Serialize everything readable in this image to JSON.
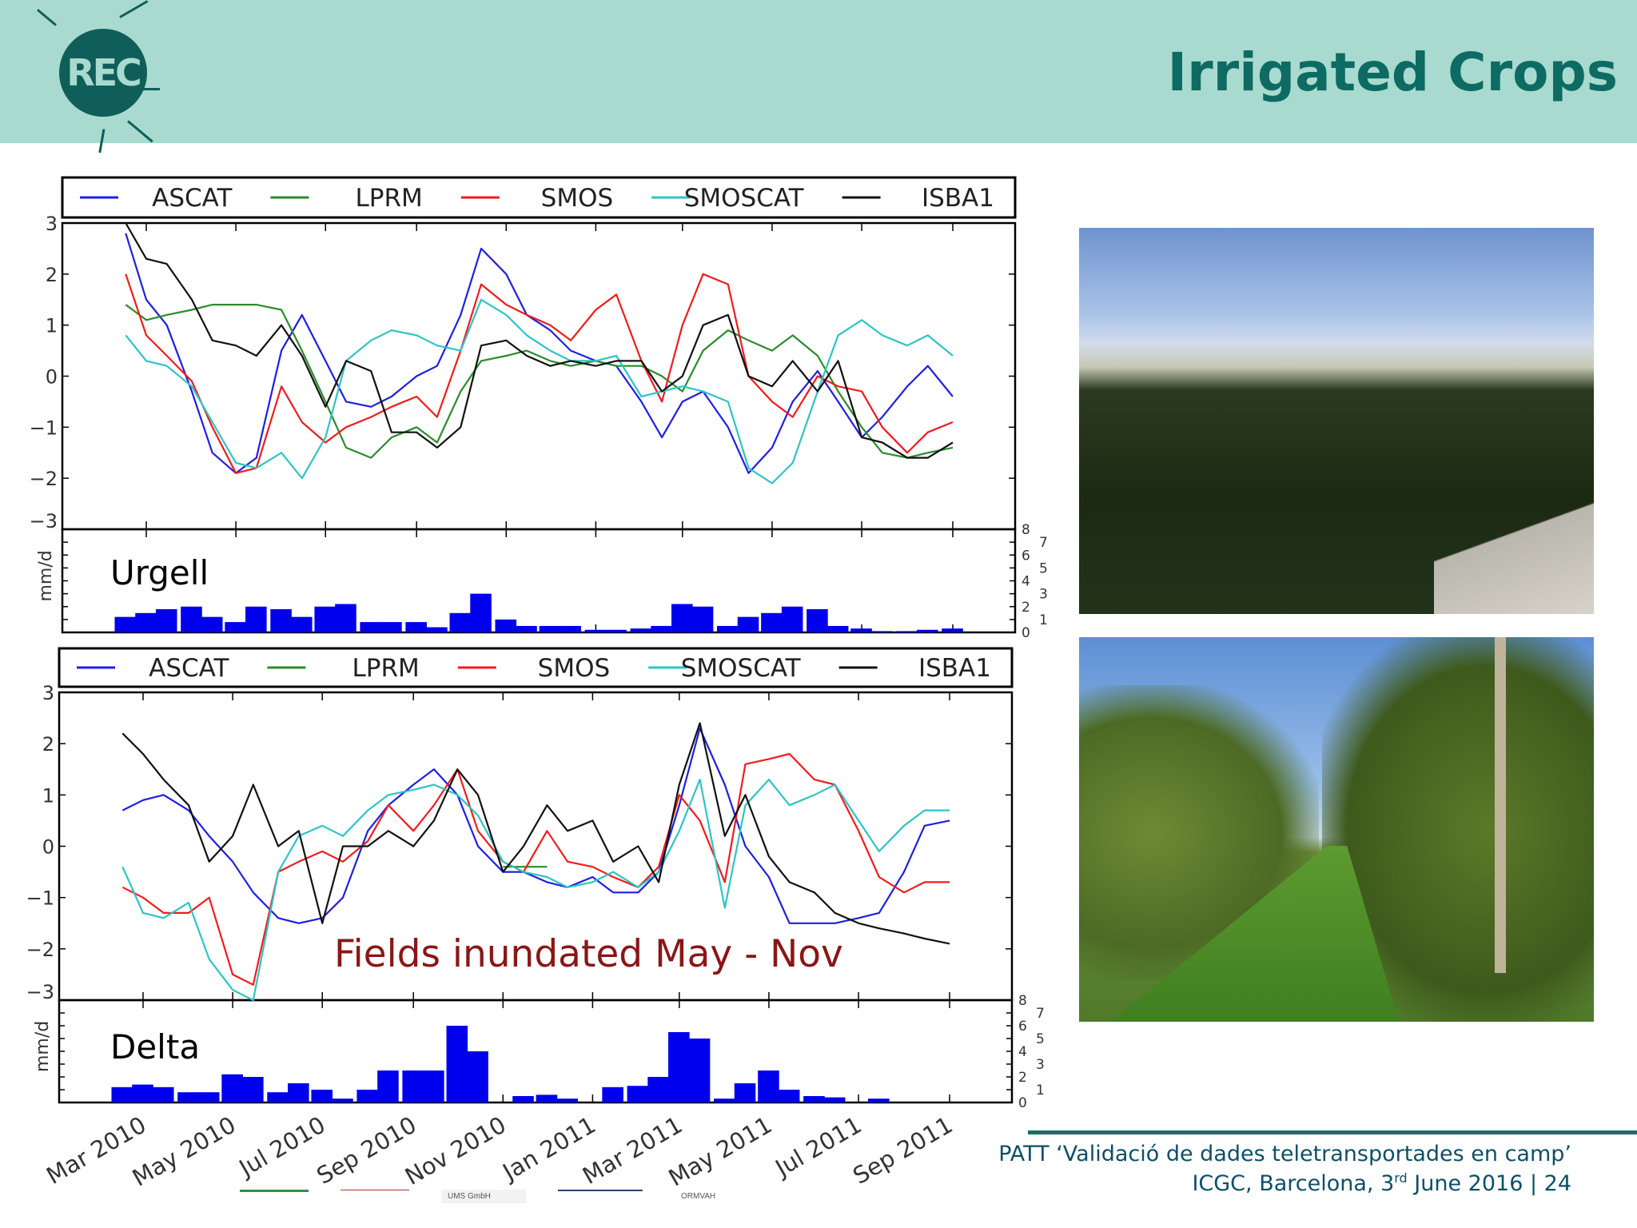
{
  "header": {
    "title": "Irrigated Crops",
    "logo_text": "REC",
    "brand_color": "#0d6b63",
    "band_color": "#a9dacf"
  },
  "chart_data": [
    {
      "type": "line",
      "panel_label": "Urgell",
      "legend": [
        "ASCAT",
        "LPRM",
        "SMOS",
        "SMOSCAT",
        "ISBA1"
      ],
      "ylim": [
        -3,
        3
      ],
      "yticks": [
        "3",
        "2",
        "1",
        "0",
        "−1",
        "−2",
        "−3"
      ],
      "xtick_labels": [
        "Mar 2010",
        "May 2010",
        "Jul 2010",
        "Sep 2010",
        "Nov 2010",
        "Jan 2011",
        "Mar 2011",
        "May 2011",
        "Jul 2011",
        "Sep 2011"
      ],
      "x": [
        "2010-02-15",
        "2010-03-01",
        "2010-03-15",
        "2010-04-01",
        "2010-04-15",
        "2010-05-01",
        "2010-05-15",
        "2010-06-01",
        "2010-06-15",
        "2010-07-01",
        "2010-07-15",
        "2010-08-01",
        "2010-08-15",
        "2010-09-01",
        "2010-09-15",
        "2010-10-01",
        "2010-10-15",
        "2010-11-01",
        "2010-11-15",
        "2010-12-01",
        "2010-12-15",
        "2011-01-01",
        "2011-01-15",
        "2011-02-01",
        "2011-02-15",
        "2011-03-01",
        "2011-03-15",
        "2011-04-01",
        "2011-04-15",
        "2011-05-01",
        "2011-05-15",
        "2011-06-01",
        "2011-06-15",
        "2011-07-01",
        "2011-07-15",
        "2011-08-01",
        "2011-08-15",
        "2011-09-01"
      ],
      "series": [
        {
          "name": "ASCAT",
          "color": "#1f1fe0",
          "values": [
            2.8,
            1.5,
            1.0,
            -0.3,
            -1.5,
            -1.9,
            -1.6,
            0.5,
            1.2,
            0.3,
            -0.5,
            -0.6,
            -0.4,
            0.0,
            0.2,
            1.2,
            2.5,
            2.0,
            1.2,
            0.9,
            0.5,
            0.3,
            0.2,
            -0.5,
            -1.2,
            -0.5,
            -0.3,
            -1.0,
            -1.9,
            -1.4,
            -0.5,
            0.1,
            -0.5,
            -1.2,
            -0.8,
            -0.2,
            0.2,
            -0.4
          ]
        },
        {
          "name": "LPRM",
          "color": "#2a8c2a",
          "values": [
            1.4,
            1.1,
            1.2,
            1.3,
            1.4,
            1.4,
            1.4,
            1.3,
            0.5,
            -0.5,
            -1.4,
            -1.6,
            -1.2,
            -1.0,
            -1.3,
            -0.3,
            0.3,
            0.4,
            0.5,
            0.3,
            0.2,
            0.3,
            0.2,
            0.2,
            0.0,
            -0.3,
            0.5,
            0.9,
            0.7,
            0.5,
            0.8,
            0.4,
            -0.3,
            -1.0,
            -1.5,
            -1.6,
            -1.5,
            -1.4
          ]
        },
        {
          "name": "SMOS",
          "color": "#f01c1c",
          "values": [
            2.0,
            0.8,
            0.4,
            -0.1,
            -1.0,
            -1.9,
            -1.8,
            -0.2,
            -0.9,
            -1.3,
            -1.0,
            -0.8,
            -0.6,
            -0.4,
            -0.8,
            0.5,
            1.8,
            1.4,
            1.2,
            1.0,
            0.7,
            1.3,
            1.6,
            0.3,
            -0.5,
            1.0,
            2.0,
            1.8,
            0.0,
            -0.5,
            -0.8,
            0.0,
            -0.2,
            -0.3,
            -1.0,
            -1.5,
            -1.1,
            -0.9
          ]
        },
        {
          "name": "SMOSCAT",
          "color": "#2ec4c4",
          "values": [
            0.8,
            0.3,
            0.2,
            -0.2,
            -0.9,
            -1.7,
            -1.8,
            -1.5,
            -2.0,
            -1.2,
            0.3,
            0.7,
            0.9,
            0.8,
            0.6,
            0.5,
            1.5,
            1.2,
            0.8,
            0.5,
            0.3,
            0.3,
            0.4,
            -0.4,
            -0.3,
            -0.2,
            -0.3,
            -0.5,
            -1.8,
            -2.1,
            -1.7,
            -0.3,
            0.8,
            1.1,
            0.8,
            0.6,
            0.8,
            0.4
          ]
        },
        {
          "name": "ISBA1",
          "color": "#111111",
          "values": [
            3.0,
            2.3,
            2.2,
            1.5,
            0.7,
            0.6,
            0.4,
            1.0,
            0.4,
            -0.6,
            0.3,
            0.1,
            -1.1,
            -1.1,
            -1.4,
            -1.0,
            0.6,
            0.7,
            0.4,
            0.2,
            0.3,
            0.2,
            0.3,
            0.3,
            -0.3,
            0.0,
            1.0,
            1.2,
            0.0,
            -0.2,
            0.3,
            -0.3,
            0.3,
            -1.2,
            -1.3,
            -1.6,
            -1.6,
            -1.3
          ]
        }
      ],
      "precip": {
        "ylabel": "mm/d",
        "ylim": [
          0,
          8
        ],
        "yticks": [
          "0",
          "1",
          "2",
          "3",
          "4",
          "5",
          "6",
          "7",
          "8"
        ],
        "color": "#0000ee",
        "values": [
          1.2,
          1.5,
          1.8,
          2.0,
          1.2,
          0.8,
          2.0,
          1.8,
          1.2,
          2.0,
          2.2,
          0.8,
          0.8,
          0.8,
          0.4,
          1.5,
          3.0,
          1.0,
          0.5,
          0.5,
          0.5,
          0.2,
          0.2,
          0.3,
          0.5,
          2.2,
          2.0,
          0.5,
          1.2,
          1.5,
          2.0,
          1.8,
          0.5,
          0.3,
          0.1,
          0.1,
          0.2,
          0.3
        ]
      }
    },
    {
      "type": "line",
      "panel_label": "Delta",
      "annotation": "Fields inundated May - Nov",
      "legend": [
        "ASCAT",
        "LPRM",
        "SMOS",
        "SMOSCAT",
        "ISBA1"
      ],
      "ylim": [
        -3,
        3
      ],
      "yticks": [
        "3",
        "2",
        "1",
        "0",
        "−1",
        "−2",
        "−3"
      ],
      "xtick_labels": [
        "Mar 2010",
        "May 2010",
        "Jul 2010",
        "Sep 2010",
        "Nov 2010",
        "Jan 2011",
        "Mar 2011",
        "May 2011",
        "Jul 2011",
        "Sep 2011"
      ],
      "x": [
        "2010-02-15",
        "2010-03-01",
        "2010-03-15",
        "2010-04-01",
        "2010-04-15",
        "2010-05-01",
        "2010-05-15",
        "2010-06-01",
        "2010-06-15",
        "2010-07-01",
        "2010-07-15",
        "2010-08-01",
        "2010-08-15",
        "2010-09-01",
        "2010-09-15",
        "2010-10-01",
        "2010-10-15",
        "2010-11-01",
        "2010-11-15",
        "2010-12-01",
        "2010-12-15",
        "2011-01-01",
        "2011-01-15",
        "2011-02-01",
        "2011-02-15",
        "2011-03-01",
        "2011-03-15",
        "2011-04-01",
        "2011-04-15",
        "2011-05-01",
        "2011-05-15",
        "2011-06-01",
        "2011-06-15",
        "2011-07-01",
        "2011-07-15",
        "2011-08-01",
        "2011-08-15",
        "2011-09-01"
      ],
      "series": [
        {
          "name": "ASCAT",
          "color": "#1f1fe0",
          "values": [
            0.7,
            0.9,
            1.0,
            0.7,
            0.2,
            -0.3,
            -0.9,
            -1.4,
            -1.5,
            -1.4,
            -1.0,
            0.3,
            0.8,
            1.2,
            1.5,
            1.0,
            0.0,
            -0.5,
            -0.5,
            -0.7,
            -0.8,
            -0.6,
            -0.9,
            -0.9,
            -0.5,
            0.8,
            2.3,
            1.2,
            0.0,
            -0.6,
            -1.5,
            -1.5,
            -1.5,
            -1.4,
            -1.3,
            -0.5,
            0.4,
            0.5
          ]
        },
        {
          "name": "LPRM",
          "color": "#2a8c2a",
          "values": [
            null,
            null,
            null,
            null,
            null,
            null,
            null,
            null,
            null,
            null,
            null,
            null,
            null,
            null,
            null,
            null,
            null,
            -0.4,
            -0.4,
            -0.4,
            null,
            null,
            null,
            null,
            null,
            null,
            null,
            null,
            null,
            null,
            null,
            null,
            null,
            null,
            null,
            null,
            null,
            null
          ]
        },
        {
          "name": "SMOS",
          "color": "#f01c1c",
          "values": [
            -0.8,
            -1.0,
            -1.3,
            -1.3,
            -1.0,
            -2.5,
            -2.7,
            -0.5,
            -0.3,
            -0.1,
            -0.3,
            0.1,
            0.8,
            0.3,
            0.8,
            1.5,
            0.3,
            -0.3,
            -0.5,
            0.3,
            -0.3,
            -0.4,
            -0.6,
            -0.8,
            -0.4,
            1.0,
            0.5,
            -0.7,
            1.6,
            1.7,
            1.8,
            1.3,
            1.2,
            0.3,
            -0.6,
            -0.9,
            -0.7,
            -0.7
          ]
        },
        {
          "name": "SMOSCAT",
          "color": "#2ec4c4",
          "values": [
            -0.4,
            -1.3,
            -1.4,
            -1.1,
            -2.2,
            -2.8,
            -3.0,
            -0.5,
            0.2,
            0.4,
            0.2,
            0.7,
            1.0,
            1.1,
            1.2,
            1.0,
            0.6,
            -0.3,
            -0.5,
            -0.6,
            -0.8,
            -0.7,
            -0.5,
            -0.8,
            -0.5,
            0.3,
            1.3,
            -1.2,
            0.8,
            1.3,
            0.8,
            1.0,
            1.2,
            0.5,
            -0.1,
            0.4,
            0.7,
            0.7
          ]
        },
        {
          "name": "ISBA1",
          "color": "#111111",
          "values": [
            2.2,
            1.8,
            1.3,
            0.8,
            -0.3,
            0.2,
            1.2,
            0.0,
            0.3,
            -1.5,
            0.0,
            0.0,
            0.3,
            0.0,
            0.5,
            1.5,
            1.0,
            -0.5,
            0.0,
            0.8,
            0.3,
            0.5,
            -0.3,
            0.0,
            -0.7,
            1.2,
            2.4,
            0.2,
            1.0,
            -0.2,
            -0.7,
            -0.9,
            -1.3,
            -1.5,
            -1.6,
            -1.7,
            -1.8,
            -1.9
          ]
        }
      ],
      "precip": {
        "ylabel": "mm/d",
        "ylim": [
          0,
          8
        ],
        "yticks": [
          "0",
          "1",
          "2",
          "3",
          "4",
          "5",
          "6",
          "7",
          "8"
        ],
        "color": "#0000ee",
        "values": [
          1.2,
          1.4,
          1.2,
          0.8,
          0.8,
          2.2,
          2.0,
          0.8,
          1.5,
          1.0,
          0.3,
          1.0,
          2.5,
          2.5,
          2.5,
          6.0,
          4.0,
          0.0,
          0.5,
          0.6,
          0.3,
          0.0,
          1.2,
          1.3,
          2.0,
          5.5,
          5.0,
          0.3,
          1.5,
          2.5,
          1.0,
          0.5,
          0.4,
          0.0,
          0.3,
          0.0,
          0.0,
          0.0
        ]
      }
    }
  ],
  "footer": {
    "line1": "PATT ‘Validació de dades teletransportades en camp’",
    "line2_pre": "ICGC, Barcelona, 3",
    "line2_sup": "rd",
    "line2_post": " June 2016 | 24",
    "color": "#1e6c66"
  },
  "sponsors": [
    "UMS GmbH",
    "ORMVAH"
  ]
}
